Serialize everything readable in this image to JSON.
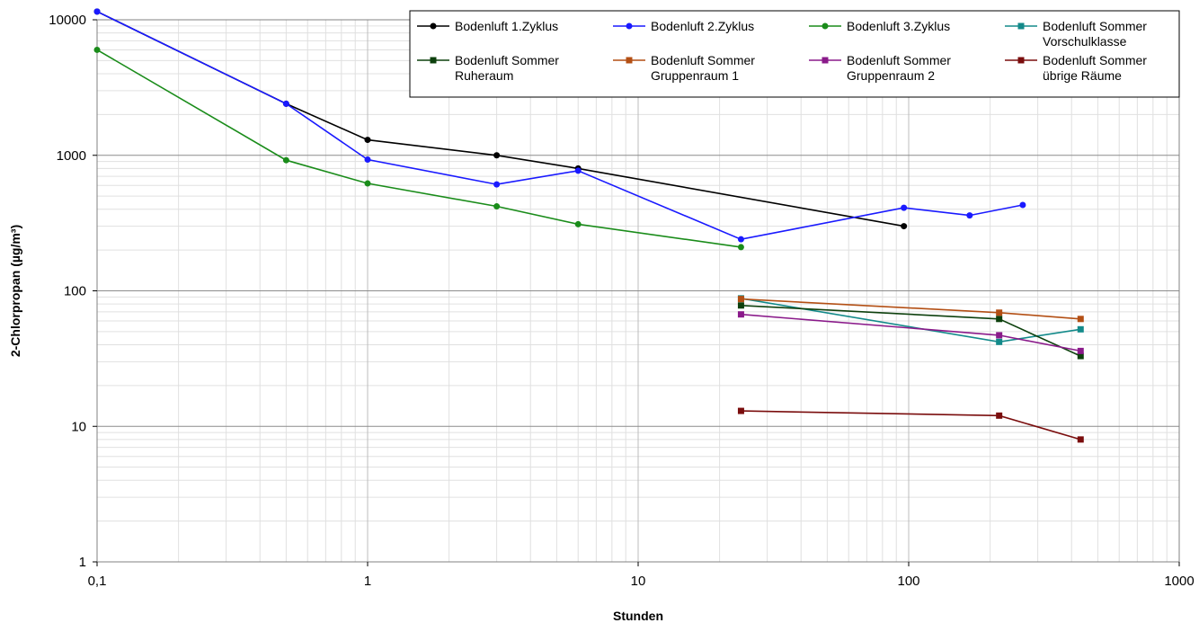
{
  "chart_data": {
    "type": "line",
    "title": "",
    "xlabel": "Stunden",
    "ylabel": "2-Chlorpropan (µg/m³)",
    "xscale": "log",
    "yscale": "log",
    "xlim": [
      0.1,
      1000
    ],
    "ylim": [
      1,
      10000
    ],
    "x_ticks": [
      0.1,
      1,
      10,
      100,
      1000
    ],
    "x_tick_labels": [
      "0,1",
      "1",
      "10",
      "100",
      "1000"
    ],
    "y_ticks": [
      1,
      10,
      100,
      1000,
      10000
    ],
    "y_tick_labels": [
      "1",
      "10",
      "100",
      "1000",
      "10000"
    ],
    "grid": "major and minor",
    "legend_position": "top-right",
    "series": [
      {
        "name": "Bodenluft 1.Zyklus",
        "name_lines": [
          "Bodenluft 1.Zyklus"
        ],
        "color": "#000000",
        "marker": "circle",
        "x": [
          0.1,
          0.5,
          1,
          3,
          6,
          96
        ],
        "y": [
          11500,
          2400,
          1300,
          1000,
          800,
          300
        ]
      },
      {
        "name": "Bodenluft 2.Zyklus",
        "name_lines": [
          "Bodenluft 2.Zyklus"
        ],
        "color": "#1a1aff",
        "marker": "circle",
        "x": [
          0.1,
          0.5,
          1,
          3,
          6,
          24,
          96,
          168,
          264
        ],
        "y": [
          11500,
          2400,
          930,
          610,
          770,
          240,
          410,
          360,
          430
        ]
      },
      {
        "name": "Bodenluft 3.Zyklus",
        "name_lines": [
          "Bodenluft 3.Zyklus"
        ],
        "color": "#1a8c1a",
        "marker": "circle",
        "x": [
          0.1,
          0.5,
          1,
          3,
          6,
          24
        ],
        "y": [
          6000,
          920,
          620,
          420,
          310,
          210
        ]
      },
      {
        "name": "Bodenluft Sommer Vorschulklasse",
        "name_lines": [
          "Bodenluft Sommer",
          "Vorschulklasse"
        ],
        "color": "#138a8a",
        "marker": "square",
        "x": [
          24,
          216,
          432
        ],
        "y": [
          88,
          42,
          52
        ]
      },
      {
        "name": "Bodenluft Sommer Ruheraum",
        "name_lines": [
          "Bodenluft Sommer",
          "Ruheraum"
        ],
        "color": "#0d400d",
        "marker": "square",
        "x": [
          24,
          216,
          432
        ],
        "y": [
          78,
          62,
          33
        ]
      },
      {
        "name": "Bodenluft Sommer Gruppenraum 1",
        "name_lines": [
          "Bodenluft Sommer",
          "Gruppenraum 1"
        ],
        "color": "#b34f14",
        "marker": "square",
        "x": [
          24,
          216,
          432
        ],
        "y": [
          87,
          69,
          62
        ]
      },
      {
        "name": "Bodenluft Sommer Gruppenraum 2",
        "name_lines": [
          "Bodenluft Sommer",
          "Gruppenraum 2"
        ],
        "color": "#8a1a8a",
        "marker": "square",
        "x": [
          24,
          216,
          432
        ],
        "y": [
          67,
          47,
          36
        ]
      },
      {
        "name": "Bodenluft Sommer übrige Räume",
        "name_lines": [
          "Bodenluft Sommer",
          "übrige Räume"
        ],
        "color": "#7a0d0d",
        "marker": "square",
        "x": [
          24,
          216,
          432
        ],
        "y": [
          13,
          12,
          8
        ]
      }
    ]
  }
}
